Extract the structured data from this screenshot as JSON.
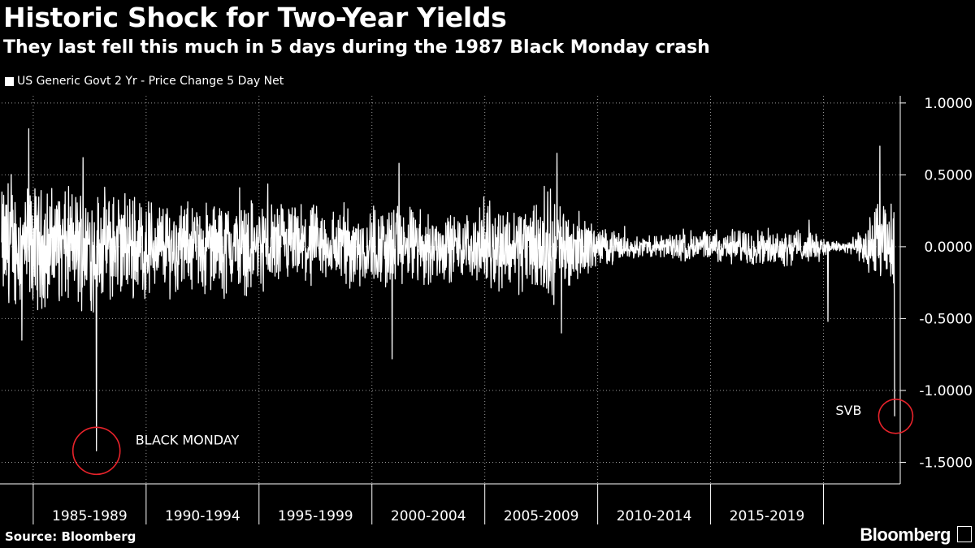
{
  "title": "Historic Shock for Two-Year Yields",
  "subtitle": "They last fell this much in 5 days during the 1987 Black Monday crash",
  "legend_label": "US Generic Govt 2 Yr - Price Change 5 Day Net",
  "source": "Source: Bloomberg",
  "brand": "Bloomberg",
  "colors": {
    "background": "#000000",
    "series": "#ffffff",
    "highlight": "#e8232b",
    "grid": "#ffffff"
  },
  "chart_data": {
    "type": "line",
    "title": "Historic Shock for Two-Year Yields",
    "subtitle": "They last fell this much in 5 days during the 1987 Black Monday crash",
    "series_name": "US Generic Govt 2 Yr - Price Change 5 Day Net",
    "x_range": [
      1983.6,
      2023.4
    ],
    "ylim": [
      -1.65,
      1.05
    ],
    "y_ticks": [
      1.0,
      0.5,
      0.0,
      -0.5,
      -1.0,
      -1.5
    ],
    "y_tick_labels": [
      "1.0000",
      "0.5000",
      "0.0000",
      "-0.5000",
      "-1.0000",
      "-1.5000"
    ],
    "x_bands": [
      {
        "label": "1985-1989",
        "start": 1985,
        "end": 1990
      },
      {
        "label": "1990-1994",
        "start": 1990,
        "end": 1995
      },
      {
        "label": "1995-1999",
        "start": 1995,
        "end": 2000
      },
      {
        "label": "2000-2004",
        "start": 2000,
        "end": 2005
      },
      {
        "label": "2005-2009",
        "start": 2005,
        "end": 2010
      },
      {
        "label": "2010-2014",
        "start": 2010,
        "end": 2015
      },
      {
        "label": "2015-2019",
        "start": 2015,
        "end": 2020
      }
    ],
    "x_boundaries": [
      1985,
      1990,
      1995,
      2000,
      2005,
      2010,
      2015,
      2020
    ],
    "volatility_profile": [
      {
        "year": 1983.6,
        "amp": 0.32
      },
      {
        "year": 1986,
        "amp": 0.3
      },
      {
        "year": 1989,
        "amp": 0.28
      },
      {
        "year": 1992,
        "amp": 0.22
      },
      {
        "year": 1995,
        "amp": 0.24
      },
      {
        "year": 1998,
        "amp": 0.2
      },
      {
        "year": 2001,
        "amp": 0.22
      },
      {
        "year": 2004,
        "amp": 0.16
      },
      {
        "year": 2008,
        "amp": 0.28
      },
      {
        "year": 2010,
        "amp": 0.1
      },
      {
        "year": 2012,
        "amp": 0.05
      },
      {
        "year": 2014,
        "amp": 0.08
      },
      {
        "year": 2016,
        "amp": 0.09
      },
      {
        "year": 2019,
        "amp": 0.09
      },
      {
        "year": 2020.5,
        "amp": 0.03
      },
      {
        "year": 2021.5,
        "amp": 0.05
      },
      {
        "year": 2022.3,
        "amp": 0.22
      },
      {
        "year": 2023.1,
        "amp": 0.22
      }
    ],
    "notable_points": [
      {
        "year": 1984.8,
        "value": 0.82
      },
      {
        "year": 1984.5,
        "value": -0.65
      },
      {
        "year": 1987.2,
        "value": 0.62
      },
      {
        "year": 2001.2,
        "value": 0.58
      },
      {
        "year": 2000.9,
        "value": -0.78
      },
      {
        "year": 2008.2,
        "value": 0.65
      },
      {
        "year": 2008.4,
        "value": -0.6
      },
      {
        "year": 2020.2,
        "value": -0.52
      },
      {
        "year": 2022.5,
        "value": 0.7
      }
    ],
    "annotations": [
      {
        "label": "BLACK MONDAY",
        "year": 1987.8,
        "value": -1.42
      },
      {
        "label": "SVB",
        "year": 2023.2,
        "value": -1.18
      }
    ]
  }
}
